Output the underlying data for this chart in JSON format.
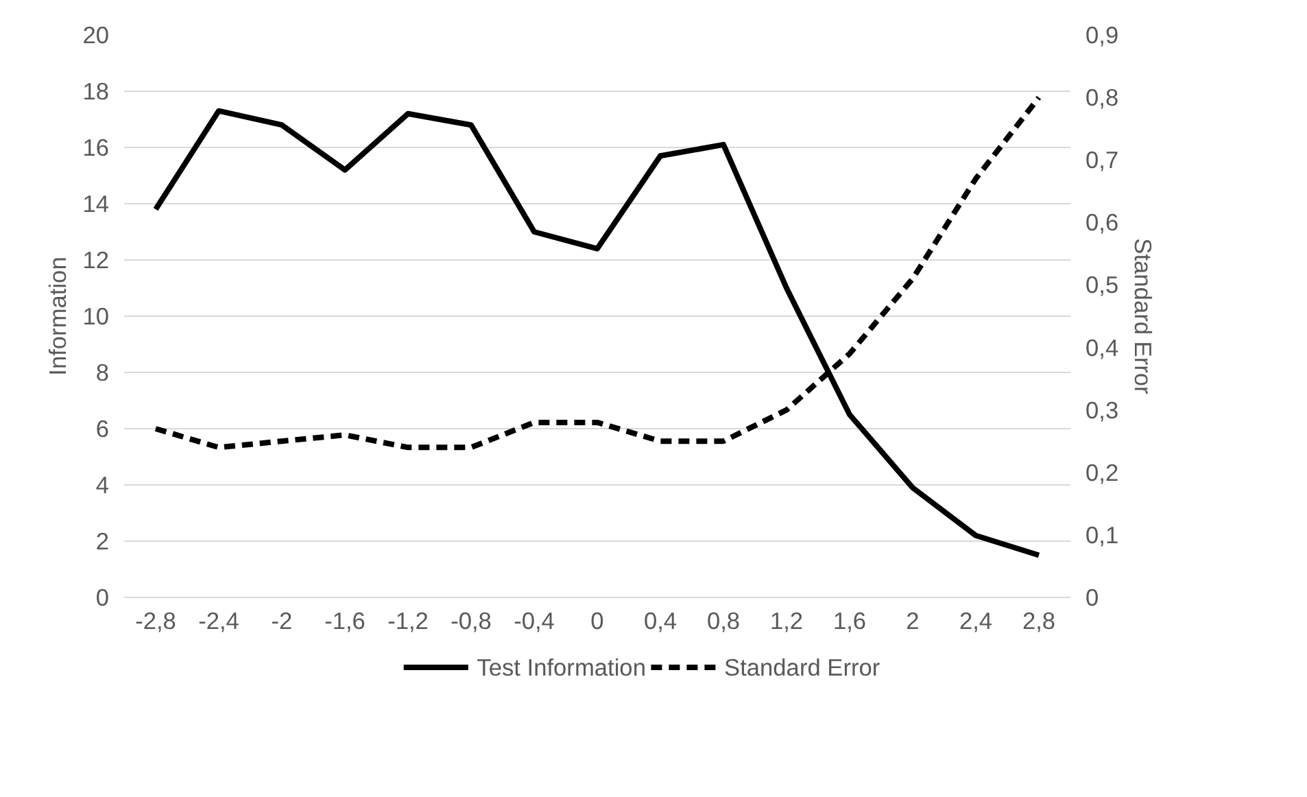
{
  "chart_data": {
    "type": "line",
    "ylabel": "Information",
    "y2label": "Standard Error",
    "categories": [
      "-2,8",
      "-2,4",
      "-2",
      "-1,6",
      "-1,2",
      "-0,8",
      "-0,4",
      "0",
      "0,4",
      "0,8",
      "1,2",
      "1,6",
      "2",
      "2,4",
      "2,8"
    ],
    "series": [
      {
        "name": "Test Information",
        "color": "#000000",
        "line_style": "solid",
        "values": [
          13.8,
          17.3,
          16.8,
          15.2,
          17.2,
          16.8,
          13.0,
          12.4,
          15.7,
          16.1,
          11.0,
          6.5,
          3.9,
          2.2,
          1.5
        ]
      },
      {
        "name": "Standard Error",
        "color": "#000000",
        "line_style": "dashed",
        "axis": "y2",
        "values": [
          0.27,
          0.24,
          0.25,
          0.26,
          0.24,
          0.24,
          0.28,
          0.28,
          0.25,
          0.25,
          0.3,
          0.39,
          0.51,
          0.67,
          0.8
        ]
      }
    ],
    "ylim": [
      0,
      20
    ],
    "yticks": [
      0,
      2,
      4,
      6,
      8,
      10,
      12,
      14,
      16,
      18,
      20
    ],
    "y2lim": [
      0,
      0.9
    ],
    "y2ticks": [
      0,
      {
        "value": 0.1,
        "label": "0,1"
      },
      {
        "value": 0.2,
        "label": "0,2"
      },
      {
        "value": 0.3,
        "label": "0,3"
      },
      {
        "value": 0.4,
        "label": "0,4"
      },
      {
        "value": 0.5,
        "label": "0,5"
      },
      {
        "value": 0.6,
        "label": "0,6"
      },
      {
        "value": 0.7,
        "label": "0,7"
      },
      {
        "value": 0.8,
        "label": "0,8"
      },
      {
        "value": 0.9,
        "label": "0,9"
      }
    ],
    "grid": "y",
    "legend": "bottom"
  }
}
